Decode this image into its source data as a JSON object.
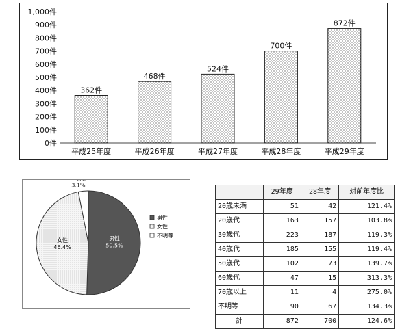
{
  "chart_data": [
    {
      "type": "bar",
      "categories": [
        "平成25年度",
        "平成26年度",
        "平成27年度",
        "平成28年度",
        "平成29年度"
      ],
      "values": [
        362,
        468,
        524,
        700,
        872
      ],
      "data_labels": [
        "362件",
        "468件",
        "524件",
        "700件",
        "872件"
      ],
      "y_ticks": [
        "0件",
        "100件",
        "200件",
        "300件",
        "400件",
        "500件",
        "600件",
        "700件",
        "800件",
        "900件",
        "1,000件"
      ],
      "ylim": [
        0,
        1000
      ],
      "grid": false,
      "bar_pattern": "dotted",
      "bar_color": "#ffffff",
      "dot_color": "#333333"
    },
    {
      "type": "pie",
      "slices": [
        {
          "label": "男性",
          "pct_label": "50.5%",
          "value": 50.5,
          "color": "#555555"
        },
        {
          "label": "女性",
          "pct_label": "46.4%",
          "value": 46.4,
          "color": "#f4f4f4",
          "pattern": "dotted"
        },
        {
          "label": "不明等",
          "pct_label": "3.1%",
          "value": 3.1,
          "color": "#ffffff"
        }
      ],
      "legend": [
        "男性",
        "女性",
        "不明等"
      ],
      "legend_position": "right"
    },
    {
      "type": "table",
      "headers": [
        "",
        "29年度",
        "28年度",
        "対前年度比"
      ],
      "rows": [
        [
          "20歳未満",
          "51",
          "42",
          "121.4%"
        ],
        [
          "20歳代",
          "163",
          "157",
          "103.8%"
        ],
        [
          "30歳代",
          "223",
          "187",
          "119.3%"
        ],
        [
          "40歳代",
          "185",
          "155",
          "119.4%"
        ],
        [
          "50歳代",
          "102",
          "73",
          "139.7%"
        ],
        [
          "60歳代",
          "47",
          "15",
          "313.3%"
        ],
        [
          "70歳以上",
          "11",
          "4",
          "275.0%"
        ],
        [
          "不明等",
          "90",
          "67",
          "134.3%"
        ]
      ],
      "total": [
        "計",
        "872",
        "700",
        "124.6%"
      ]
    }
  ]
}
